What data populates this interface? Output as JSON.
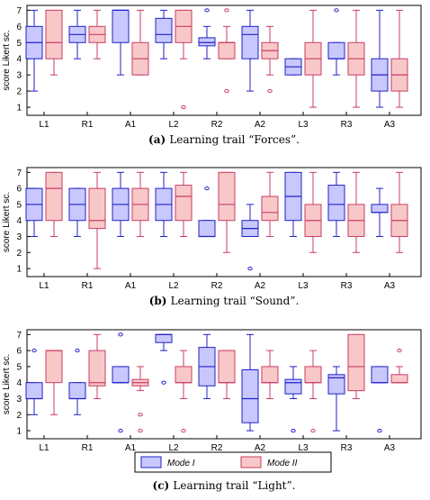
{
  "colors": {
    "mode1_stroke": "#2020c8",
    "mode1_fill": "#c8c8ff",
    "mode2_stroke": "#c83c64",
    "mode2_fill": "#f8c8c8"
  },
  "legend": {
    "mode1": "Mode I",
    "mode2": "Mode II"
  },
  "chart_data": [
    {
      "type": "boxplot",
      "caption_tag": "(a)",
      "caption_text": "Learning trail “Forces”.",
      "ylabel": "score Likert sc.",
      "ylim": [
        0.5,
        7.3
      ],
      "yticks": [
        1,
        2,
        3,
        4,
        5,
        6,
        7
      ],
      "categories": [
        "L1",
        "R1",
        "A1",
        "L2",
        "R2",
        "A2",
        "L3",
        "R3",
        "A3"
      ],
      "series": [
        {
          "name": "Mode I",
          "boxes": [
            {
              "min": 2,
              "q1": 4,
              "med": 5,
              "q3": 6,
              "max": 7,
              "outliers": []
            },
            {
              "min": 4,
              "q1": 5,
              "med": 5.5,
              "q3": 6,
              "max": 7,
              "outliers": []
            },
            {
              "min": 3,
              "q1": 5,
              "med": 7,
              "q3": 7,
              "max": 7,
              "outliers": []
            },
            {
              "min": 4,
              "q1": 5,
              "med": 5.5,
              "q3": 6.5,
              "max": 7,
              "outliers": []
            },
            {
              "min": 4,
              "q1": 4.8,
              "med": 5,
              "q3": 5.3,
              "max": 6,
              "outliers": [
                7
              ]
            },
            {
              "min": 2,
              "q1": 4,
              "med": 5.5,
              "q3": 6,
              "max": 7,
              "outliers": []
            },
            {
              "min": 3,
              "q1": 3,
              "med": 3.5,
              "q3": 4,
              "max": 4,
              "outliers": []
            },
            {
              "min": 3,
              "q1": 4,
              "med": 4,
              "q3": 5,
              "max": 5,
              "outliers": [
                7
              ]
            },
            {
              "min": 1,
              "q1": 2,
              "med": 3,
              "q3": 4,
              "max": 7,
              "outliers": []
            }
          ]
        },
        {
          "name": "Mode II",
          "boxes": [
            {
              "min": 3,
              "q1": 4,
              "med": 5,
              "q3": 7,
              "max": 7,
              "outliers": []
            },
            {
              "min": 4,
              "q1": 5,
              "med": 5.5,
              "q3": 6,
              "max": 7,
              "outliers": []
            },
            {
              "min": 3,
              "q1": 3,
              "med": 4,
              "q3": 5,
              "max": 7,
              "outliers": []
            },
            {
              "min": 4,
              "q1": 5,
              "med": 6,
              "q3": 7,
              "max": 7,
              "outliers": [
                1
              ]
            },
            {
              "min": 4,
              "q1": 4,
              "med": 5,
              "q3": 5,
              "max": 6,
              "outliers": [
                7,
                2
              ]
            },
            {
              "min": 3,
              "q1": 4,
              "med": 4.5,
              "q3": 5,
              "max": 6,
              "outliers": [
                2
              ]
            },
            {
              "min": 1,
              "q1": 3,
              "med": 4,
              "q3": 5,
              "max": 7,
              "outliers": []
            },
            {
              "min": 1,
              "q1": 3,
              "med": 4,
              "q3": 5,
              "max": 7,
              "outliers": []
            },
            {
              "min": 1,
              "q1": 2,
              "med": 3,
              "q3": 4,
              "max": 7,
              "outliers": []
            }
          ]
        }
      ]
    },
    {
      "type": "boxplot",
      "caption_tag": "(b)",
      "caption_text": "Learning trail “Sound”.",
      "ylabel": "score Likert sc.",
      "ylim": [
        0.5,
        7.3
      ],
      "yticks": [
        1,
        2,
        3,
        4,
        5,
        6,
        7
      ],
      "categories": [
        "L1",
        "R1",
        "A1",
        "L2",
        "R2",
        "A2",
        "L3",
        "R3",
        "A3"
      ],
      "series": [
        {
          "name": "Mode I",
          "boxes": [
            {
              "min": 3,
              "q1": 4,
              "med": 5,
              "q3": 6,
              "max": 6,
              "outliers": []
            },
            {
              "min": 3,
              "q1": 4,
              "med": 5,
              "q3": 6,
              "max": 6,
              "outliers": []
            },
            {
              "min": 3,
              "q1": 4,
              "med": 5,
              "q3": 6,
              "max": 7,
              "outliers": []
            },
            {
              "min": 3,
              "q1": 4,
              "med": 5,
              "q3": 6,
              "max": 7,
              "outliers": []
            },
            {
              "min": 3,
              "q1": 3,
              "med": 3,
              "q3": 4,
              "max": 4,
              "outliers": [
                6
              ]
            },
            {
              "min": 3,
              "q1": 3,
              "med": 3.5,
              "q3": 4,
              "max": 5,
              "outliers": [
                1
              ]
            },
            {
              "min": 3,
              "q1": 4,
              "med": 5.5,
              "q3": 7,
              "max": 7,
              "outliers": []
            },
            {
              "min": 3,
              "q1": 4,
              "med": 5,
              "q3": 6.2,
              "max": 7,
              "outliers": []
            },
            {
              "min": 3,
              "q1": 4.5,
              "med": 4.5,
              "q3": 5,
              "max": 6,
              "outliers": []
            }
          ]
        },
        {
          "name": "Mode II",
          "boxes": [
            {
              "min": 3,
              "q1": 4,
              "med": 6,
              "q3": 7,
              "max": 7,
              "outliers": []
            },
            {
              "min": 1,
              "q1": 3.5,
              "med": 4,
              "q3": 6,
              "max": 7,
              "outliers": []
            },
            {
              "min": 3,
              "q1": 4,
              "med": 5,
              "q3": 6,
              "max": 7,
              "outliers": []
            },
            {
              "min": 3,
              "q1": 4,
              "med": 5.5,
              "q3": 6.2,
              "max": 7,
              "outliers": []
            },
            {
              "min": 2,
              "q1": 4,
              "med": 5,
              "q3": 7,
              "max": 7,
              "outliers": []
            },
            {
              "min": 3,
              "q1": 4,
              "med": 4.5,
              "q3": 5.5,
              "max": 7,
              "outliers": []
            },
            {
              "min": 2,
              "q1": 3,
              "med": 4,
              "q3": 5,
              "max": 7,
              "outliers": []
            },
            {
              "min": 2,
              "q1": 3,
              "med": 4,
              "q3": 5,
              "max": 7,
              "outliers": []
            },
            {
              "min": 2,
              "q1": 3,
              "med": 4,
              "q3": 5,
              "max": 7,
              "outliers": []
            }
          ]
        }
      ]
    },
    {
      "type": "boxplot",
      "caption_tag": "(c)",
      "caption_text": "Learning trail “Light”.",
      "ylabel": "score Likert sc.",
      "ylim": [
        0.5,
        7.3
      ],
      "yticks": [
        1,
        2,
        3,
        4,
        5,
        6,
        7
      ],
      "categories": [
        "L1",
        "R1",
        "A1",
        "L2",
        "R2",
        "A2",
        "L3",
        "R3",
        "A3"
      ],
      "series": [
        {
          "name": "Mode I",
          "boxes": [
            {
              "min": 2,
              "q1": 3,
              "med": 3,
              "q3": 4,
              "max": 4,
              "outliers": [
                6
              ]
            },
            {
              "min": 2,
              "q1": 3,
              "med": 3,
              "q3": 4,
              "max": 4,
              "outliers": [
                6
              ]
            },
            {
              "min": 4,
              "q1": 4,
              "med": 4,
              "q3": 5,
              "max": 5,
              "outliers": [
                7,
                1
              ]
            },
            {
              "min": 6,
              "q1": 6.5,
              "med": 7,
              "q3": 7,
              "max": 7,
              "outliers": [
                4
              ]
            },
            {
              "min": 3,
              "q1": 3.8,
              "med": 5,
              "q3": 6.2,
              "max": 7,
              "outliers": []
            },
            {
              "min": 1,
              "q1": 1.5,
              "med": 3,
              "q3": 4.8,
              "max": 7,
              "outliers": []
            },
            {
              "min": 3,
              "q1": 3.3,
              "med": 4,
              "q3": 4.2,
              "max": 5,
              "outliers": [
                1
              ]
            },
            {
              "min": 1,
              "q1": 3.3,
              "med": 4.3,
              "q3": 4.5,
              "max": 5,
              "outliers": []
            },
            {
              "min": 4,
              "q1": 4,
              "med": 4,
              "q3": 5,
              "max": 5,
              "outliers": [
                1
              ]
            }
          ]
        },
        {
          "name": "Mode II",
          "boxes": [
            {
              "min": 2,
              "q1": 4,
              "med": 6,
              "q3": 6,
              "max": 6,
              "outliers": []
            },
            {
              "min": 3,
              "q1": 3.8,
              "med": 4,
              "q3": 6,
              "max": 7,
              "outliers": []
            },
            {
              "min": 3.5,
              "q1": 3.8,
              "med": 4,
              "q3": 4.2,
              "max": 5,
              "outliers": [
                2,
                1
              ]
            },
            {
              "min": 3,
              "q1": 4,
              "med": 4,
              "q3": 5,
              "max": 6,
              "outliers": [
                1
              ]
            },
            {
              "min": 3,
              "q1": 4,
              "med": 4,
              "q3": 6,
              "max": 6,
              "outliers": []
            },
            {
              "min": 3,
              "q1": 4,
              "med": 4,
              "q3": 5,
              "max": 6,
              "outliers": []
            },
            {
              "min": 3,
              "q1": 4,
              "med": 4,
              "q3": 5,
              "max": 6,
              "outliers": [
                1
              ]
            },
            {
              "min": 3,
              "q1": 3.5,
              "med": 5,
              "q3": 7,
              "max": 7,
              "outliers": []
            },
            {
              "min": 4,
              "q1": 4,
              "med": 4,
              "q3": 4.5,
              "max": 5,
              "outliers": [
                6
              ]
            }
          ]
        }
      ]
    }
  ]
}
